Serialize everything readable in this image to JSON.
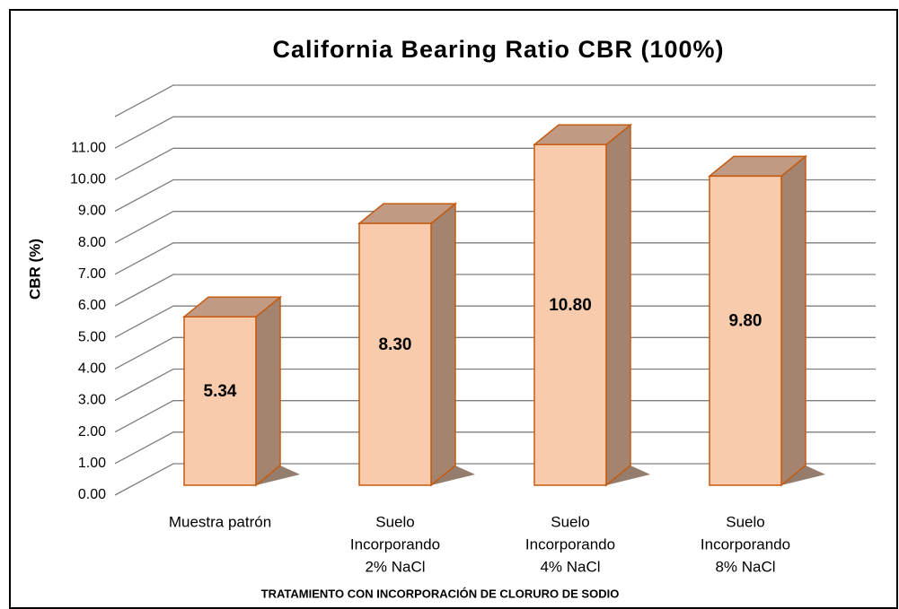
{
  "chart_data": {
    "type": "bar3d",
    "title": "California Bearing Ratio CBR (100%)",
    "y_label": "CBR (%)",
    "x_label": "TRATAMIENTO CON INCORPORACIÓN DE CLORURO DE SODIO",
    "categories": [
      [
        "Muestra patrón"
      ],
      [
        "Suelo",
        "Incorporando",
        "2% NaCl"
      ],
      [
        "Suelo",
        "Incorporando",
        "4% NaCl"
      ],
      [
        "Suelo",
        "Incorporando",
        "8% NaCl"
      ]
    ],
    "values": [
      5.34,
      8.3,
      10.8,
      9.8
    ],
    "value_labels": [
      "5.34",
      "8.30",
      "10.80",
      "9.80"
    ],
    "color": "#f8cbad",
    "ylim": [
      0,
      12
    ],
    "yticks": [
      {
        "value": 0,
        "label": "0.00"
      },
      {
        "value": 1,
        "label": "1.00"
      },
      {
        "value": 2,
        "label": "2.00"
      },
      {
        "value": 3,
        "label": "3.00"
      },
      {
        "value": 4,
        "label": "4.00"
      },
      {
        "value": 5,
        "label": "5.00"
      },
      {
        "value": 6,
        "label": "6.00"
      },
      {
        "value": 7,
        "label": "7.00"
      },
      {
        "value": 8,
        "label": "8.00"
      },
      {
        "value": 9,
        "label": "9.00"
      },
      {
        "value": 10,
        "label": "10.00"
      },
      {
        "value": 11,
        "label": "11.00"
      }
    ],
    "grid": true
  }
}
